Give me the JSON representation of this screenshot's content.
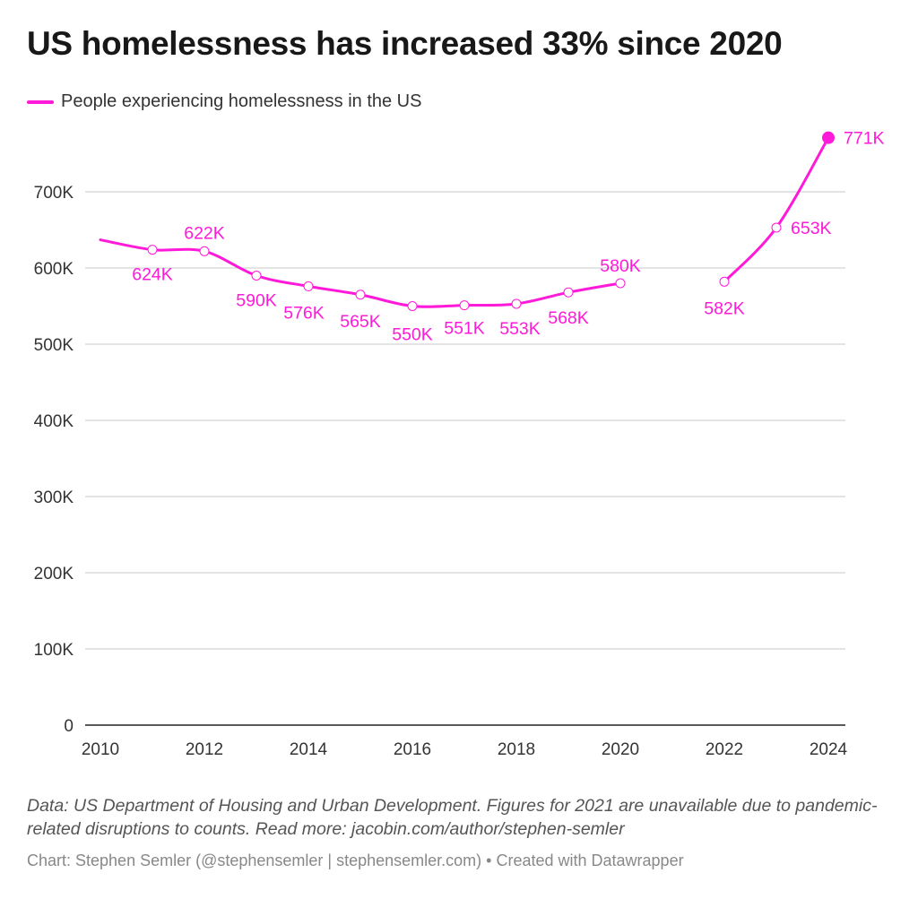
{
  "title": "US homelessness has increased 33% since 2020",
  "chart_data": {
    "type": "line",
    "title": "US homelessness has increased 33% since 2020",
    "xlabel": "",
    "ylabel": "",
    "xlim": [
      2010,
      2024
    ],
    "ylim": [
      0,
      700000
    ],
    "x_ticks": [
      2010,
      2012,
      2014,
      2016,
      2018,
      2020,
      2022,
      2024
    ],
    "y_ticks": [
      0,
      100000,
      200000,
      300000,
      400000,
      500000,
      600000,
      700000
    ],
    "y_tick_labels": [
      "0",
      "100K",
      "200K",
      "300K",
      "400K",
      "500K",
      "600K",
      "700K"
    ],
    "grid": true,
    "legend": "top-left",
    "series": [
      {
        "name": "People experiencing homelessness in the US",
        "color": "#ff1ad9",
        "segments": [
          [
            {
              "x": 2010,
              "y": 637000,
              "label": ""
            },
            {
              "x": 2011,
              "y": 624000,
              "label": "624K"
            },
            {
              "x": 2012,
              "y": 622000,
              "label": "622K"
            },
            {
              "x": 2013,
              "y": 590000,
              "label": "590K"
            },
            {
              "x": 2014,
              "y": 576000,
              "label": "576K"
            },
            {
              "x": 2015,
              "y": 565000,
              "label": "565K"
            },
            {
              "x": 2016,
              "y": 550000,
              "label": "550K"
            },
            {
              "x": 2017,
              "y": 551000,
              "label": "551K"
            },
            {
              "x": 2018,
              "y": 553000,
              "label": "553K"
            },
            {
              "x": 2019,
              "y": 568000,
              "label": "568K"
            },
            {
              "x": 2020,
              "y": 580000,
              "label": "580K"
            }
          ],
          [
            {
              "x": 2022,
              "y": 582000,
              "label": "582K"
            },
            {
              "x": 2023,
              "y": 653000,
              "label": "653K"
            },
            {
              "x": 2024,
              "y": 771000,
              "label": "771K",
              "highlight": true
            }
          ]
        ]
      }
    ]
  },
  "notes": "Data: US Department of Housing and Urban Development. Figures for 2021 are unavailable due to pandemic-related disruptions to counts. Read more: jacobin.com/author/stephen-semler",
  "credit": "Chart: Stephen Semler (@stephensemler | stephensemler.com) • Created with Datawrapper"
}
